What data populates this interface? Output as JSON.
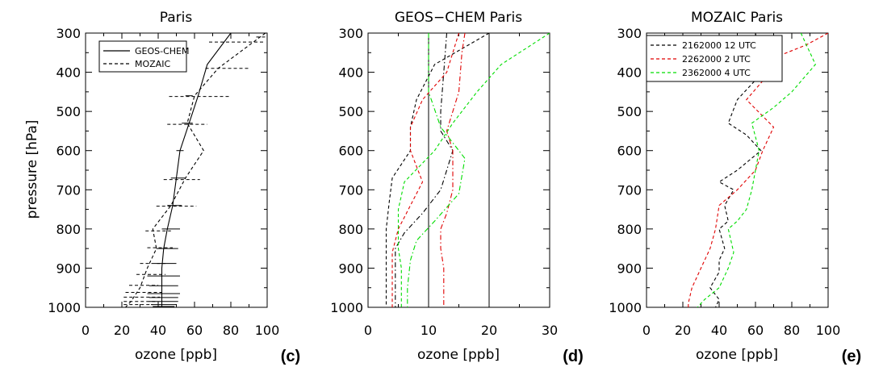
{
  "figure": {
    "ylabel": "pressure [hPa]"
  },
  "chart_data": [
    {
      "type": "line",
      "title": "Paris",
      "panel_label": "(c)",
      "xlabel": "ozone [ppb]",
      "ylabel": "pressure [hPa]",
      "xlim": [
        0,
        100
      ],
      "ylim": [
        1000,
        300
      ],
      "y_reversed": true,
      "x_ticks": [
        "0",
        "20",
        "40",
        "60",
        "80",
        "100"
      ],
      "y_ticks": [
        "300",
        "400",
        "500",
        "600",
        "700",
        "800",
        "900",
        "1000"
      ],
      "legend": {
        "position": "top-left",
        "entries": [
          {
            "label": "GEOS-CHEM",
            "style": "solid",
            "color": "#000000"
          },
          {
            "label": "MOZAIC",
            "style": "dashed",
            "color": "#000000"
          }
        ]
      },
      "series": [
        {
          "name": "GEOS-CHEM",
          "style": "solid",
          "color": "#000000",
          "points": [
            [
              80,
              300
            ],
            [
              67,
              380
            ],
            [
              62,
              460
            ],
            [
              57,
              530
            ],
            [
              52,
              600
            ],
            [
              50,
              670
            ],
            [
              48,
              740
            ],
            [
              45,
              800
            ],
            [
              43,
              850
            ],
            [
              42,
              900
            ],
            [
              42,
              950
            ],
            [
              42,
              1000
            ]
          ],
          "error_bars": [
            {
              "y": 460,
              "x": 57,
              "hw": 2
            },
            {
              "y": 530,
              "x": 56,
              "hw": 3
            },
            {
              "y": 600,
              "x": 52,
              "hw": 2
            },
            {
              "y": 670,
              "x": 51,
              "hw": 4
            },
            {
              "y": 740,
              "x": 49,
              "hw": 4
            },
            {
              "y": 800,
              "x": 47,
              "hw": 5
            },
            {
              "y": 850,
              "x": 45,
              "hw": 6
            },
            {
              "y": 888,
              "x": 44,
              "hw": 6
            },
            {
              "y": 920,
              "x": 43,
              "hw": 9
            },
            {
              "y": 945,
              "x": 43,
              "hw": 8
            },
            {
              "y": 965,
              "x": 43,
              "hw": 9
            },
            {
              "y": 975,
              "x": 43,
              "hw": 8
            },
            {
              "y": 985,
              "x": 43,
              "hw": 8
            },
            {
              "y": 993,
              "x": 43,
              "hw": 7
            },
            {
              "y": 998,
              "x": 43,
              "hw": 6
            }
          ]
        },
        {
          "name": "MOZAIC",
          "style": "dashed",
          "color": "#000000",
          "points": [
            [
              99,
              300
            ],
            [
              73,
              390
            ],
            [
              60,
              460
            ],
            [
              56,
              530
            ],
            [
              65,
              600
            ],
            [
              55,
              670
            ],
            [
              47,
              740
            ],
            [
              37,
              800
            ],
            [
              39,
              850
            ],
            [
              34,
              900
            ],
            [
              30,
              950
            ],
            [
              25,
              985
            ],
            [
              22,
              1000
            ]
          ],
          "error_bars": [
            {
              "y": 310,
              "x": 97,
              "hw": 3
            },
            {
              "y": 323,
              "x": 83,
              "hw": 15
            },
            {
              "y": 390,
              "x": 78,
              "hw": 12
            },
            {
              "y": 462,
              "x": 63,
              "hw": 17
            },
            {
              "y": 533,
              "x": 56,
              "hw": 11
            },
            {
              "y": 674,
              "x": 53,
              "hw": 10
            },
            {
              "y": 742,
              "x": 50,
              "hw": 11
            },
            {
              "y": 805,
              "x": 40,
              "hw": 7
            },
            {
              "y": 848,
              "x": 41,
              "hw": 7
            },
            {
              "y": 888,
              "x": 37,
              "hw": 7
            },
            {
              "y": 916,
              "x": 36,
              "hw": 8
            },
            {
              "y": 944,
              "x": 32,
              "hw": 8
            },
            {
              "y": 962,
              "x": 32,
              "hw": 10
            },
            {
              "y": 974,
              "x": 31,
              "hw": 10
            },
            {
              "y": 985,
              "x": 30,
              "hw": 9
            },
            {
              "y": 993,
              "x": 29,
              "hw": 8
            }
          ]
        }
      ]
    },
    {
      "type": "line",
      "title": "GEOS−CHEM Paris",
      "panel_label": "(d)",
      "xlabel": "ozone [ppb]",
      "ylabel": "pressure [hPa]",
      "xlim": [
        0,
        30
      ],
      "ylim": [
        1000,
        300
      ],
      "y_reversed": true,
      "x_ticks": [
        "0",
        "10",
        "20",
        "30"
      ],
      "y_ticks": [
        "300",
        "400",
        "500",
        "600",
        "700",
        "800",
        "900",
        "1000"
      ],
      "vertical_lines": [
        10,
        20
      ],
      "series": [
        {
          "color": "#000000",
          "style": "dashed",
          "points": [
            [
              20,
              300
            ],
            [
              11,
              380
            ],
            [
              8,
              470
            ],
            [
              7,
              540
            ],
            [
              7,
              600
            ],
            [
              4,
              670
            ],
            [
              3.5,
              730
            ],
            [
              3,
              800
            ],
            [
              3,
              900
            ],
            [
              3,
              1000
            ]
          ]
        },
        {
          "color": "#000000",
          "style": "dashdot",
          "points": [
            [
              13,
              300
            ],
            [
              12.5,
              400
            ],
            [
              12,
              500
            ],
            [
              12,
              550
            ],
            [
              14,
              600
            ],
            [
              12,
              700
            ],
            [
              9,
              760
            ],
            [
              6,
              810
            ],
            [
              4.5,
              850
            ],
            [
              4.5,
              900
            ],
            [
              4.5,
              1000
            ]
          ]
        },
        {
          "color": "#e00000",
          "style": "dashed",
          "points": [
            [
              15,
              300
            ],
            [
              13,
              400
            ],
            [
              9,
              470
            ],
            [
              7,
              540
            ],
            [
              7,
              600
            ],
            [
              9,
              680
            ],
            [
              7,
              740
            ],
            [
              5,
              800
            ],
            [
              4,
              860
            ],
            [
              4,
              930
            ],
            [
              4,
              1000
            ]
          ]
        },
        {
          "color": "#e00000",
          "style": "dashdot",
          "points": [
            [
              16,
              300
            ],
            [
              15.5,
              350
            ],
            [
              15,
              450
            ],
            [
              13,
              550
            ],
            [
              14,
              600
            ],
            [
              14,
              700
            ],
            [
              13,
              760
            ],
            [
              12,
              800
            ],
            [
              12,
              850
            ],
            [
              12.5,
              900
            ],
            [
              12.5,
              1000
            ]
          ]
        },
        {
          "color": "#00dd00",
          "style": "dashed",
          "points": [
            [
              30,
              300
            ],
            [
              22,
              380
            ],
            [
              18,
              450
            ],
            [
              14,
              530
            ],
            [
              11,
              600
            ],
            [
              6,
              680
            ],
            [
              5,
              750
            ],
            [
              5,
              800
            ],
            [
              5,
              850
            ],
            [
              5.5,
              900
            ],
            [
              5.5,
              1000
            ]
          ]
        },
        {
          "color": "#00dd00",
          "style": "dashdot",
          "points": [
            [
              10,
              300
            ],
            [
              10,
              450
            ],
            [
              12,
              540
            ],
            [
              15,
              600
            ],
            [
              16,
              620
            ],
            [
              15,
              710
            ],
            [
              11,
              780
            ],
            [
              8,
              830
            ],
            [
              7,
              880
            ],
            [
              6.5,
              950
            ],
            [
              6.5,
              1000
            ]
          ]
        }
      ]
    },
    {
      "type": "line",
      "title": "MOZAIC Paris",
      "panel_label": "(e)",
      "xlabel": "ozone [ppb]",
      "ylabel": "pressure [hPa]",
      "xlim": [
        0,
        100
      ],
      "ylim": [
        1000,
        300
      ],
      "y_reversed": true,
      "x_ticks": [
        "0",
        "20",
        "40",
        "60",
        "80",
        "100"
      ],
      "y_ticks": [
        "300",
        "400",
        "500",
        "600",
        "700",
        "800",
        "900",
        "1000"
      ],
      "legend": {
        "position": "top-left",
        "entries": [
          {
            "label": "2162000 12 UTC",
            "style": "dashed",
            "color": "#000000"
          },
          {
            "label": "2262000 2 UTC",
            "style": "dashed",
            "color": "#e00000"
          },
          {
            "label": "2362000 4 UTC",
            "style": "dashed",
            "color": "#00dd00"
          }
        ]
      },
      "series": [
        {
          "name": "2162000 12 UTC",
          "style": "dashed",
          "color": "#000000",
          "points": [
            [
              60,
              300
            ],
            [
              63,
              380
            ],
            [
              57,
              400
            ],
            [
              60,
              420
            ],
            [
              50,
              470
            ],
            [
              45,
              530
            ],
            [
              55,
              560
            ],
            [
              63,
              600
            ],
            [
              50,
              650
            ],
            [
              40,
              680
            ],
            [
              48,
              700
            ],
            [
              43,
              740
            ],
            [
              45,
              780
            ],
            [
              40,
              800
            ],
            [
              43,
              850
            ],
            [
              40,
              880
            ],
            [
              40,
              910
            ],
            [
              35,
              950
            ],
            [
              40,
              980
            ],
            [
              38,
              1000
            ]
          ]
        },
        {
          "name": "2262000 2 UTC",
          "style": "dashed",
          "color": "#e00000",
          "points": [
            [
              100,
              300
            ],
            [
              88,
              330
            ],
            [
              72,
              360
            ],
            [
              70,
              390
            ],
            [
              55,
              470
            ],
            [
              70,
              540
            ],
            [
              64,
              600
            ],
            [
              60,
              650
            ],
            [
              50,
              700
            ],
            [
              40,
              740
            ],
            [
              38,
              800
            ],
            [
              35,
              850
            ],
            [
              30,
              900
            ],
            [
              25,
              950
            ],
            [
              23,
              990
            ],
            [
              23,
              1000
            ]
          ]
        },
        {
          "name": "2362000 4 UTC",
          "style": "dashed",
          "color": "#00dd00",
          "points": [
            [
              85,
              300
            ],
            [
              93,
              380
            ],
            [
              80,
              450
            ],
            [
              70,
              490
            ],
            [
              58,
              530
            ],
            [
              62,
              600
            ],
            [
              60,
              650
            ],
            [
              58,
              700
            ],
            [
              55,
              750
            ],
            [
              50,
              780
            ],
            [
              45,
              800
            ],
            [
              48,
              860
            ],
            [
              45,
              900
            ],
            [
              40,
              950
            ],
            [
              32,
              980
            ],
            [
              28,
              1000
            ]
          ]
        }
      ]
    }
  ]
}
